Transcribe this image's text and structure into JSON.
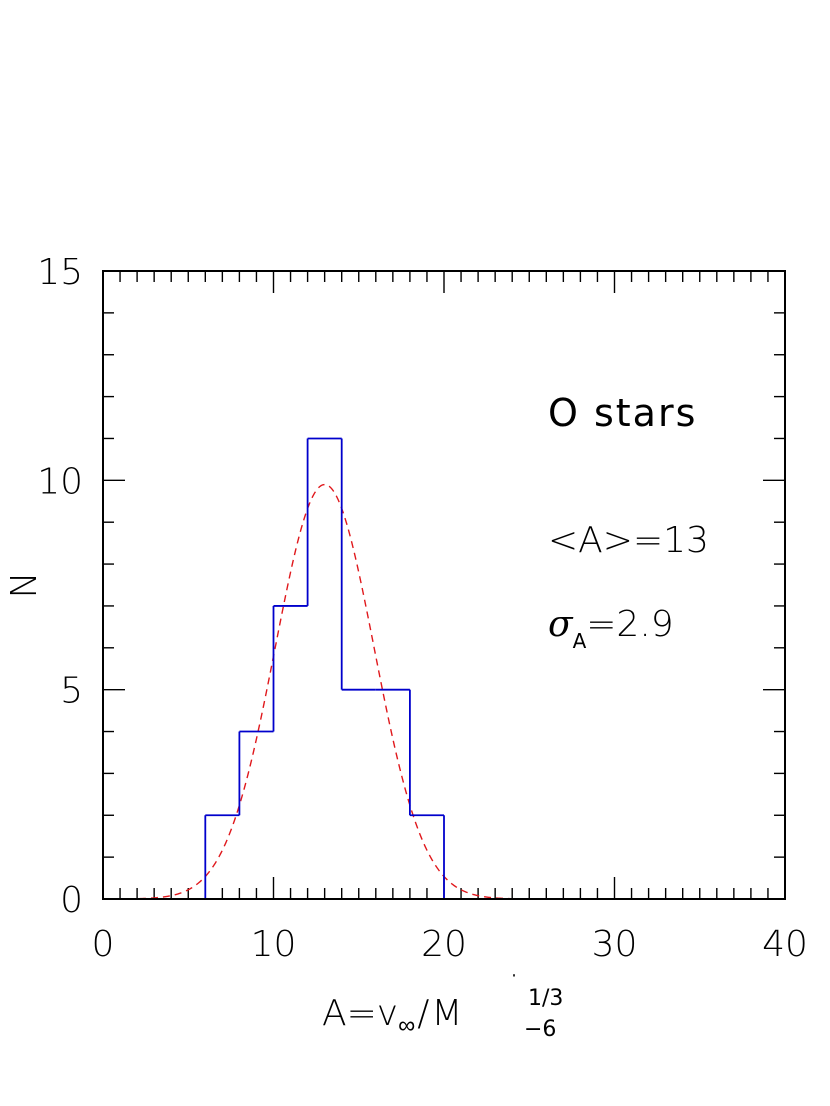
{
  "chart_data": {
    "type": "bar",
    "bin_edges": [
      6,
      8,
      10,
      12,
      14,
      16,
      18,
      20
    ],
    "counts": [
      2,
      4,
      7,
      11,
      5,
      5,
      2
    ],
    "fit": {
      "mean": 13,
      "sigma": 2.9,
      "peak": 9.9
    },
    "xlim": [
      0,
      40
    ],
    "ylim": [
      0,
      15
    ],
    "x_ticks": [
      0,
      10,
      20,
      30,
      40
    ],
    "y_ticks": [
      0,
      5,
      10,
      15
    ],
    "x_minor_step": 1,
    "y_minor_step": 1,
    "xlabel": "A=v∞/Ṁ−6 1/3",
    "ylabel": "N",
    "grid": false,
    "colors": {
      "histogram": "#0000cc",
      "fit": "#e0181c",
      "axes": "#000000"
    }
  },
  "annotations": {
    "class_label": "O stars",
    "mean_label": "<A>=13",
    "sigma_symbol": "σ",
    "sigma_sub": "A",
    "sigma_value": "=2.9"
  },
  "xlabel_parts": {
    "main": "A=v",
    "inf": "∞",
    "slash": "/",
    "M": "M",
    "dot": "˙",
    "exp": "1/3",
    "sub": "−6"
  }
}
